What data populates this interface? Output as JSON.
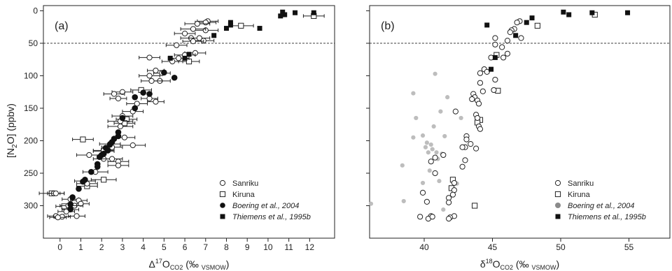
{
  "figure": {
    "ylabel_main": "[N",
    "ylabel_sub": "2",
    "ylabel_end": "O]  (ppbv)"
  },
  "colors": {
    "open": "#ffffff",
    "stroke": "#222222",
    "solid": "#111111",
    "grey": "#bdbdbd",
    "grey_legend": "#8a8a8a",
    "dashed": "#222222"
  },
  "chart_data": [
    {
      "type": "scatter",
      "panel_label": "(a)",
      "xlabel": {
        "base": "Δ",
        "sup": "17",
        "main": "O",
        "sub": "CO2",
        "unit_open": " (‰ ",
        "unit_sub": "VSMOW",
        "unit_close": ")"
      },
      "xlim": [
        -0.8,
        13.2
      ],
      "ylim": [
        350,
        -8
      ],
      "xticks": [
        0,
        1,
        2,
        3,
        4,
        5,
        6,
        7,
        8,
        9,
        10,
        11,
        12
      ],
      "yticks": [
        0,
        50,
        100,
        150,
        200,
        250,
        300
      ],
      "hline": 50,
      "legend_position": "bottom-right",
      "series": [
        {
          "name": "Sanriku",
          "marker": "circle-open",
          "points": [
            [
              7.1,
              16,
              0.5
            ],
            [
              7.0,
              18,
              0.5
            ],
            [
              6.6,
              20,
              0.6
            ],
            [
              7.0,
              30,
              0.6
            ],
            [
              6.4,
              28,
              0.6
            ],
            [
              6.0,
              35,
              0.5
            ],
            [
              6.3,
              42,
              0.5
            ],
            [
              6.7,
              42,
              0.5
            ],
            [
              6.9,
              46,
              0.5
            ],
            [
              6.4,
              47,
              0.5
            ],
            [
              5.6,
              53,
              0.5
            ],
            [
              6.5,
              65,
              0.5
            ],
            [
              6.0,
              68,
              0.5
            ],
            [
              4.3,
              72,
              0.5
            ],
            [
              5.7,
              73,
              0.5
            ],
            [
              5.4,
              78,
              0.5
            ],
            [
              4.6,
              92,
              0.4
            ],
            [
              4.9,
              96,
              0.4
            ],
            [
              4.3,
              100,
              0.5
            ],
            [
              4.8,
              108,
              0.5
            ],
            [
              4.4,
              108,
              0.5
            ],
            [
              3.0,
              125,
              0.5
            ],
            [
              2.6,
              128,
              0.5
            ],
            [
              2.8,
              135,
              0.4
            ],
            [
              4.3,
              135,
              0.4
            ],
            [
              4.6,
              140,
              0.4
            ],
            [
              3.7,
              143,
              0.5
            ],
            [
              3.5,
              155,
              0.5
            ],
            [
              3.0,
              162,
              0.5
            ],
            [
              2.9,
              170,
              0.6
            ],
            [
              2.9,
              178,
              0.6
            ],
            [
              3.1,
              195,
              0.5
            ],
            [
              2.4,
              205,
              0.5
            ],
            [
              2.5,
              210,
              0.5
            ],
            [
              2.1,
              215,
              0.5
            ],
            [
              3.5,
              207,
              0.6
            ],
            [
              1.4,
              222,
              0.6
            ],
            [
              2.1,
              228,
              0.5
            ],
            [
              2.5,
              228,
              0.5
            ],
            [
              2.8,
              232,
              0.5
            ],
            [
              2.8,
              238,
              0.5
            ],
            [
              1.7,
              248,
              0.6
            ],
            [
              1.2,
              262,
              0.5
            ],
            [
              1.3,
              266,
              0.5
            ],
            [
              -0.3,
              281,
              0.3
            ],
            [
              -0.2,
              281,
              0.4
            ],
            [
              0.5,
              290,
              0.4
            ],
            [
              0.9,
              292,
              0.4
            ],
            [
              1.0,
              297,
              0.4
            ],
            [
              0.7,
              300,
              0.4
            ],
            [
              0.4,
              300,
              0.4
            ],
            [
              0.5,
              306,
              0.4
            ],
            [
              0.3,
              309,
              0.4
            ],
            [
              0.8,
              316,
              0.4
            ],
            [
              -0.2,
              316,
              0.4
            ],
            [
              0.1,
              317,
              0.4
            ],
            [
              -0.1,
              318,
              0.4
            ]
          ]
        },
        {
          "name": "Kiruna",
          "marker": "square-open",
          "points": [
            [
              12.2,
              8,
              0.5
            ],
            [
              8.7,
              23,
              0.6
            ],
            [
              6.2,
              78,
              0.5
            ],
            [
              3.9,
              122,
              0.5
            ],
            [
              3.2,
              167,
              0.5
            ],
            [
              3.1,
              173,
              0.5
            ],
            [
              1.1,
              198,
              0.5
            ],
            [
              2.1,
              216,
              0.5
            ],
            [
              1.3,
              270,
              0.5
            ],
            [
              2.1,
              260,
              0.6
            ],
            [
              0.2,
              301,
              0.4
            ],
            [
              -0.4,
              281,
              0.6
            ]
          ]
        },
        {
          "name": "Boering et al., 2004",
          "marker": "circle-solid",
          "italic": true,
          "points": [
            [
              5.0,
              95
            ],
            [
              5.5,
              103
            ],
            [
              4.3,
              128
            ],
            [
              4.0,
              126
            ],
            [
              3.6,
              133
            ],
            [
              3.6,
              150
            ],
            [
              3.0,
              165
            ],
            [
              2.8,
              187
            ],
            [
              2.8,
              193
            ],
            [
              2.6,
              197
            ],
            [
              2.5,
              202
            ],
            [
              2.4,
              206
            ],
            [
              2.2,
              211
            ],
            [
              2.3,
              215
            ],
            [
              2.1,
              220
            ],
            [
              2.0,
              222
            ],
            [
              1.9,
              225
            ],
            [
              1.8,
              236
            ],
            [
              1.8,
              240
            ],
            [
              1.5,
              248
            ],
            [
              1.2,
              260
            ],
            [
              1.1,
              263
            ],
            [
              0.9,
              274
            ],
            [
              0.6,
              287
            ],
            [
              0.5,
              298
            ],
            [
              0.5,
              305
            ]
          ]
        },
        {
          "name": "Thiemens et al., 1995b",
          "marker": "square-solid",
          "italic": true,
          "points": [
            [
              10.7,
              2
            ],
            [
              11.3,
              3
            ],
            [
              12.2,
              3
            ],
            [
              10.8,
              6
            ],
            [
              10.6,
              8
            ],
            [
              9.6,
              27
            ],
            [
              8.2,
              18
            ],
            [
              8.2,
              22
            ],
            [
              8.0,
              27
            ],
            [
              7.4,
              38
            ],
            [
              6.2,
              67
            ],
            [
              6.0,
              73
            ],
            [
              5.3,
              73
            ]
          ]
        }
      ]
    },
    {
      "type": "scatter",
      "panel_label": "(b)",
      "xlabel": {
        "base": "δ",
        "sup": "18",
        "main": "O",
        "sub": "CO2",
        "unit_open": " (‰ ",
        "unit_sub": "VSMOW",
        "unit_close": ")"
      },
      "xlim": [
        36,
        58
      ],
      "ylim": [
        350,
        -8
      ],
      "xticks": [
        40,
        45,
        50,
        55
      ],
      "yticks": [
        0,
        50,
        100,
        150,
        200,
        250,
        300
      ],
      "hline": 50,
      "legend_position": "bottom-right",
      "series": [
        {
          "name": "Sanriku",
          "marker": "circle-open",
          "points": [
            [
              47.0,
              16
            ],
            [
              46.8,
              18
            ],
            [
              46.6,
              28
            ],
            [
              46.4,
              30
            ],
            [
              46.3,
              33
            ],
            [
              45.2,
              42
            ],
            [
              47.1,
              42
            ],
            [
              46.1,
              46
            ],
            [
              45.2,
              52
            ],
            [
              45.7,
              56
            ],
            [
              46.1,
              66
            ],
            [
              44.9,
              72
            ],
            [
              45.8,
              72
            ],
            [
              44.4,
              90
            ],
            [
              44.6,
              94
            ],
            [
              44.1,
              96
            ],
            [
              45.2,
              106
            ],
            [
              44.1,
              111
            ],
            [
              45.1,
              122
            ],
            [
              44.3,
              124
            ],
            [
              43.6,
              128
            ],
            [
              43.7,
              133
            ],
            [
              43.5,
              136
            ],
            [
              43.9,
              138
            ],
            [
              44.0,
              143
            ],
            [
              42.3,
              155
            ],
            [
              43.8,
              160
            ],
            [
              43.9,
              165
            ],
            [
              44.0,
              178
            ],
            [
              44.1,
              182
            ],
            [
              43.1,
              193
            ],
            [
              43.1,
              198
            ],
            [
              43.4,
              205
            ],
            [
              43.0,
              210
            ],
            [
              42.8,
              210
            ],
            [
              43.8,
              212
            ],
            [
              41.4,
              222
            ],
            [
              43.0,
              230
            ],
            [
              42.8,
              240
            ],
            [
              40.8,
              226
            ],
            [
              40.5,
              232
            ],
            [
              40.8,
              250
            ],
            [
              42.2,
              265
            ],
            [
              42.2,
              276
            ],
            [
              42.1,
              283
            ],
            [
              41.8,
              288
            ],
            [
              41.8,
              295
            ],
            [
              39.9,
              280
            ],
            [
              40.2,
              294
            ],
            [
              40.5,
              316
            ],
            [
              42.2,
              316
            ],
            [
              41.9,
              318
            ],
            [
              40.3,
              320
            ],
            [
              39.7,
              317
            ],
            [
              41.8,
              320
            ],
            [
              40.6,
              317
            ]
          ]
        },
        {
          "name": "Kiruna",
          "marker": "square-open",
          "points": [
            [
              52.5,
              6
            ],
            [
              48.3,
              23
            ],
            [
              45.3,
              68
            ],
            [
              45.4,
              123
            ],
            [
              44.1,
              168
            ],
            [
              43.9,
              172
            ],
            [
              42.1,
              260
            ],
            [
              42.0,
              273
            ],
            [
              43.7,
              300
            ]
          ]
        },
        {
          "name": "Boering et al., 2004",
          "marker": "circle-grey",
          "italic": true,
          "points": [
            [
              40.8,
              97
            ],
            [
              39.2,
              127
            ],
            [
              41.7,
              133
            ],
            [
              41.2,
              155
            ],
            [
              39.4,
              165
            ],
            [
              42.7,
              165
            ],
            [
              40.7,
              178
            ],
            [
              39.9,
              192
            ],
            [
              39.2,
              195
            ],
            [
              41.5,
              193
            ],
            [
              40.2,
              203
            ],
            [
              40.5,
              206
            ],
            [
              40.1,
              210
            ],
            [
              40.6,
              213
            ],
            [
              40.3,
              218
            ],
            [
              40.9,
              218
            ],
            [
              41.3,
              220
            ],
            [
              41.0,
              228
            ],
            [
              38.4,
              238
            ],
            [
              40.4,
              246
            ],
            [
              42.4,
              266
            ],
            [
              41.1,
              262
            ],
            [
              39.9,
              265
            ],
            [
              36.1,
              297
            ],
            [
              38.5,
              293
            ],
            [
              41.4,
              306
            ]
          ]
        },
        {
          "name": "Thiemens et al., 1995b",
          "marker": "square-solid",
          "italic": true,
          "points": [
            [
              50.2,
              2
            ],
            [
              54.9,
              3
            ],
            [
              52.3,
              3
            ],
            [
              50.6,
              6
            ],
            [
              47.9,
              11
            ],
            [
              47.5,
              18
            ],
            [
              44.6,
              22
            ],
            [
              46.7,
              38
            ],
            [
              45.2,
              72
            ],
            [
              44.9,
              90
            ]
          ]
        }
      ]
    }
  ]
}
